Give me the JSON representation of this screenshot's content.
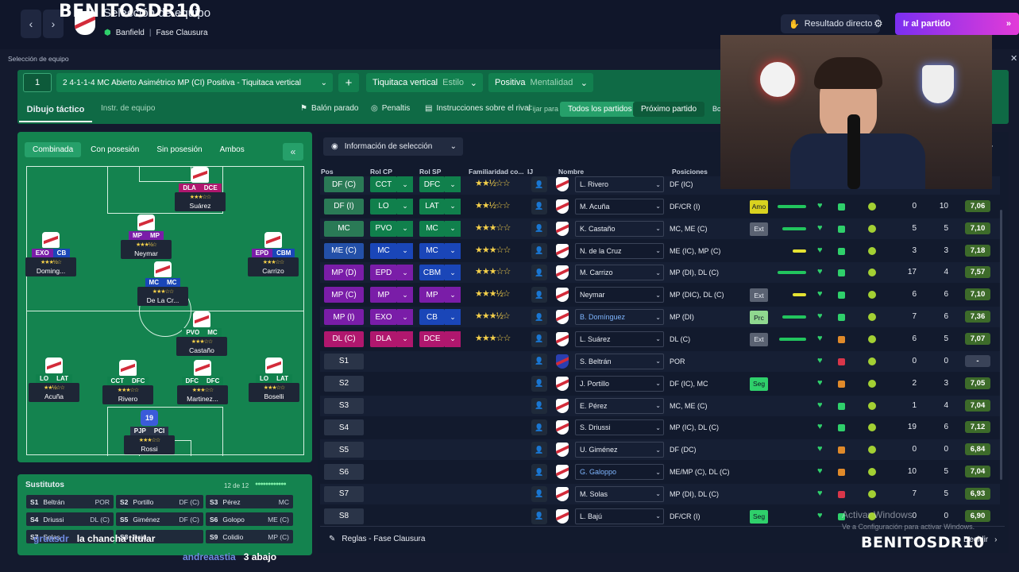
{
  "streamer": "BENITOSDR10",
  "header": {
    "title": "Selección de equipo",
    "club": "Banfield",
    "phase": "Fase Clausura",
    "live_result": "Resultado directo",
    "go_match": "Ir al partido"
  },
  "section_label": "Selección de equipo",
  "tactics": {
    "slot": "1",
    "formation": "2  4-1-1-4 MC Abierto Asimétrico MP (CI) Positiva - Tiquitaca vertical",
    "style_value": "Tiquitaca vertical",
    "style_label": "Estilo",
    "mentality_value": "Positiva",
    "mentality_label": "Mentalidad",
    "tab_drawing": "Dibujo táctico",
    "tab_instr": "Instr. de equipo",
    "set_pieces": "Balón parado",
    "penalties": "Penaltis",
    "opp_instr": "Instrucciones sobre el rival",
    "fix_for": "Fijar para",
    "all_matches": "Todos los partidos",
    "next_match": "Próximo partido",
    "cut": "Bo"
  },
  "pitch_tabs": [
    "Combinada",
    "Con posesión",
    "Sin posesión",
    "Ambos"
  ],
  "players_on_pitch": [
    {
      "name": "Suárez",
      "r1": "DLA",
      "r2": "DCE",
      "c1": "#b0176e",
      "c2": "#b0176e",
      "stars": "★★★☆☆"
    },
    {
      "name": "Neymar",
      "r1": "MP",
      "r2": "MP",
      "c1": "#7a1da8",
      "c2": "#7a1da8",
      "stars": "★★★½☆"
    },
    {
      "name": "Doming...",
      "r1": "EXO",
      "r2": "CB",
      "c1": "#7a1da8",
      "c2": "#1a46b8",
      "stars": "★★★½☆"
    },
    {
      "name": "Carrizo",
      "r1": "EPD",
      "r2": "CBM",
      "c1": "#7a1da8",
      "c2": "#1a46b8",
      "stars": "★★★☆☆"
    },
    {
      "name": "De La Cr...",
      "r1": "MC",
      "r2": "MC",
      "c1": "#1a46b8",
      "c2": "#1a46b8",
      "stars": "★★★☆☆"
    },
    {
      "name": "Castaño",
      "r1": "PVO",
      "r2": "MC",
      "c1": "#10804c",
      "c2": "#10804c",
      "stars": "★★★☆☆"
    },
    {
      "name": "Acuña",
      "r1": "LO",
      "r2": "LAT",
      "c1": "#10804c",
      "c2": "#10804c",
      "stars": "★★½☆☆"
    },
    {
      "name": "Rivero",
      "r1": "CCT",
      "r2": "DFC",
      "c1": "#10804c",
      "c2": "#10804c",
      "stars": "★★★☆☆"
    },
    {
      "name": "Martinez...",
      "r1": "DFC",
      "r2": "DFC",
      "c1": "#10804c",
      "c2": "#10804c",
      "stars": "★★★☆☆"
    },
    {
      "name": "Boselli",
      "r1": "LO",
      "r2": "LAT",
      "c1": "#10804c",
      "c2": "#10804c",
      "stars": "★★★☆☆"
    },
    {
      "name": "Rossi",
      "r1": "PJP",
      "r2": "PCI",
      "c1": "#2a3448",
      "c2": "#2a3448",
      "stars": "★★★☆☆",
      "number": "19"
    }
  ],
  "subs": {
    "title": "Sustitutos",
    "count": "12 de 12",
    "items": [
      {
        "k": "S1",
        "n": "Beltrán",
        "p": "POR"
      },
      {
        "k": "S2",
        "n": "Portillo",
        "p": "DF (C)"
      },
      {
        "k": "S3",
        "n": "Pérez",
        "p": "MC"
      },
      {
        "k": "S4",
        "n": "Driussi",
        "p": "DL (C)"
      },
      {
        "k": "S5",
        "n": "Giménez",
        "p": "DF (C)"
      },
      {
        "k": "S6",
        "n": "Golopo",
        "p": "ME (C)"
      },
      {
        "k": "S7",
        "n": "Solas",
        "p": ""
      },
      {
        "k": "S8",
        "n": "Bajú",
        "p": ""
      },
      {
        "k": "S9",
        "n": "Colidio",
        "p": "MP (C)"
      }
    ]
  },
  "chat": [
    {
      "user": "gruasdr",
      "msg": "la chancha titular"
    },
    {
      "user": "andreaastia",
      "msg": "3 abajo"
    }
  ],
  "table": {
    "info_label": "Información de selección",
    "columns": [
      "Pos",
      "Rol CP",
      "Rol SP",
      "Familiaridad co...",
      "IJ",
      "Nombre",
      "Posiciones"
    ],
    "rows": [
      {
        "pos": "DF (C)",
        "pc": "#2a7a56",
        "r1": "CCT",
        "r2": "DFC",
        "c1": "#10804c",
        "c2": "#10804c",
        "stars": "★★½☆☆",
        "name": "L. Rivero",
        "posn": "DF (IC)",
        "tag": "",
        "tc": "",
        "cond": 0.9,
        "cc": "#22c55e",
        "sq": "#2fd06b",
        "a": "",
        "b": "",
        "rt": ""
      },
      {
        "pos": "DF (I)",
        "pc": "#2a7a56",
        "r1": "LO",
        "r2": "LAT",
        "c1": "#10804c",
        "c2": "#10804c",
        "stars": "★★½☆☆",
        "name": "M. Acuña",
        "posn": "DF/CR (I)",
        "tag": "Amo",
        "tc": "#d9d21f",
        "cond": 0.95,
        "cc": "#22c55e",
        "sq": "#2fd06b",
        "a": "0",
        "b": "10",
        "rt": "7,06"
      },
      {
        "pos": "MC",
        "pc": "#2a7a56",
        "r1": "PVO",
        "r2": "MC",
        "c1": "#10804c",
        "c2": "#10804c",
        "stars": "★★★☆☆",
        "name": "K. Castaño",
        "posn": "MC, ME (C)",
        "tag": "Ext",
        "tc": "#5a6272",
        "cond": 0.8,
        "cc": "#22c55e",
        "sq": "#2fd06b",
        "a": "5",
        "b": "5",
        "rt": "7,10"
      },
      {
        "pos": "ME (C)",
        "pc": "#2350a8",
        "r1": "MC",
        "r2": "MC",
        "c1": "#1a46b8",
        "c2": "#1a46b8",
        "stars": "★★★☆☆",
        "name": "N. de la Cruz",
        "posn": "ME (IC), MP (C)",
        "tag": "",
        "tc": "",
        "cond": 0.45,
        "cc": "#e5e232",
        "sq": "#2fd06b",
        "a": "3",
        "b": "3",
        "rt": "7,18"
      },
      {
        "pos": "MP (D)",
        "pc": "#7a1da8",
        "r1": "EPD",
        "r2": "CBM",
        "c1": "#7a1da8",
        "c2": "#1a46b8",
        "stars": "★★★☆☆",
        "name": "M. Carrizo",
        "posn": "MP (DI), DL (C)",
        "tag": "",
        "tc": "",
        "cond": 0.95,
        "cc": "#22c55e",
        "sq": "#2fd06b",
        "a": "17",
        "b": "4",
        "rt": "7,57"
      },
      {
        "pos": "MP (C)",
        "pc": "#7a1da8",
        "r1": "MP",
        "r2": "MP",
        "c1": "#7a1da8",
        "c2": "#7a1da8",
        "stars": "★★★½☆",
        "name": "Neymar",
        "posn": "MP (DIC), DL (C)",
        "tag": "Ext",
        "tc": "#5a6272",
        "cond": 0.45,
        "cc": "#e5e232",
        "sq": "#2fd06b",
        "a": "6",
        "b": "6",
        "rt": "7,10"
      },
      {
        "pos": "MP (I)",
        "pc": "#7a1da8",
        "r1": "EXO",
        "r2": "CB",
        "c1": "#7a1da8",
        "c2": "#1a46b8",
        "stars": "★★★½☆",
        "name": "B. Domínguez",
        "posn": "MP (DI)",
        "tag": "Prc",
        "tc": "#8fd88f",
        "cond": 0.8,
        "cc": "#22c55e",
        "sq": "#2fd06b",
        "a": "7",
        "b": "6",
        "rt": "7,36"
      },
      {
        "pos": "DL (C)",
        "pc": "#b0176e",
        "r1": "DLA",
        "r2": "DCE",
        "c1": "#b0176e",
        "c2": "#b0176e",
        "stars": "★★★☆☆",
        "name": "L. Suárez",
        "posn": "DL (C)",
        "tag": "Ext",
        "tc": "#5a6272",
        "cond": 0.9,
        "cc": "#22c55e",
        "sq": "#e08a2a",
        "a": "6",
        "b": "5",
        "rt": "7,07"
      },
      {
        "pos": "S1",
        "pc": "#2a3448",
        "r1": "",
        "r2": "",
        "c1": "",
        "c2": "",
        "stars": "",
        "name": "S. Beltrán",
        "posn": "POR",
        "tag": "",
        "tc": "",
        "cond": 0,
        "cc": "",
        "sq": "#d9364a",
        "a": "0",
        "b": "0",
        "rt": "-"
      },
      {
        "pos": "S2",
        "pc": "#2a3448",
        "r1": "",
        "r2": "",
        "c1": "",
        "c2": "",
        "stars": "",
        "name": "J. Portillo",
        "posn": "DF (IC), MC",
        "tag": "Seg",
        "tc": "#2fd06b",
        "cond": 0,
        "cc": "",
        "sq": "#e08a2a",
        "a": "2",
        "b": "3",
        "rt": "7,05"
      },
      {
        "pos": "S3",
        "pc": "#2a3448",
        "r1": "",
        "r2": "",
        "c1": "",
        "c2": "",
        "stars": "",
        "name": "E. Pérez",
        "posn": "MC, ME (C)",
        "tag": "",
        "tc": "",
        "cond": 0,
        "cc": "",
        "sq": "#2fd06b",
        "a": "1",
        "b": "4",
        "rt": "7,04"
      },
      {
        "pos": "S4",
        "pc": "#2a3448",
        "r1": "",
        "r2": "",
        "c1": "",
        "c2": "",
        "stars": "",
        "name": "S. Driussi",
        "posn": "MP (IC), DL (C)",
        "tag": "",
        "tc": "",
        "cond": 0,
        "cc": "",
        "sq": "#2fd06b",
        "a": "19",
        "b": "6",
        "rt": "7,12"
      },
      {
        "pos": "S5",
        "pc": "#2a3448",
        "r1": "",
        "r2": "",
        "c1": "",
        "c2": "",
        "stars": "",
        "name": "U. Giménez",
        "posn": "DF (DC)",
        "tag": "",
        "tc": "",
        "cond": 0,
        "cc": "",
        "sq": "#e08a2a",
        "a": "0",
        "b": "0",
        "rt": "6,84"
      },
      {
        "pos": "S6",
        "pc": "#2a3448",
        "r1": "",
        "r2": "",
        "c1": "",
        "c2": "",
        "stars": "",
        "name": "G. Galoppo",
        "posn": "ME/MP (C), DL (C)",
        "tag": "",
        "tc": "",
        "cond": 0,
        "cc": "",
        "sq": "#e08a2a",
        "a": "10",
        "b": "5",
        "rt": "7,04"
      },
      {
        "pos": "S7",
        "pc": "#2a3448",
        "r1": "",
        "r2": "",
        "c1": "",
        "c2": "",
        "stars": "",
        "name": "M. Solas",
        "posn": "MP (DI), DL (C)",
        "tag": "",
        "tc": "",
        "cond": 0,
        "cc": "",
        "sq": "#d9364a",
        "a": "7",
        "b": "5",
        "rt": "6,93"
      },
      {
        "pos": "S8",
        "pc": "#2a3448",
        "r1": "",
        "r2": "",
        "c1": "",
        "c2": "",
        "stars": "",
        "name": "L. Bajú",
        "posn": "DF/CR (I)",
        "tag": "Seg",
        "tc": "#2fd06b",
        "cond": 0,
        "cc": "",
        "sq": "#2fd06b",
        "a": "0",
        "b": "0",
        "rt": "6,90"
      }
    ]
  },
  "footer": {
    "rules": "Reglas - Fase Clausura",
    "decide": "Decidir"
  },
  "windows": {
    "l1": "Activar Windows",
    "l2": "Ve a Configuración para activar Windows."
  }
}
